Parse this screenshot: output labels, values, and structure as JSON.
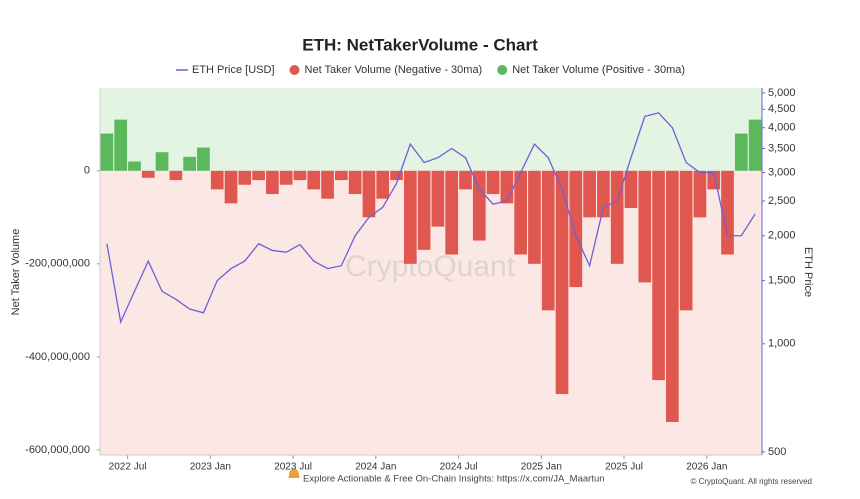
{
  "chart_data": {
    "type": "bar",
    "title": "ETH: NetTakerVolume - Chart",
    "y_label": "Net Taker Volume",
    "y2_label": "ETH Price",
    "watermark": "CryptoQuant",
    "footer": "Explore Actionable & Free On-Chain Insights: https://x.com/JA_Maartun",
    "copyright": "© CryptoQuant. All rights reserved",
    "x": [
      "2022-05",
      "2022-06",
      "2022-07",
      "2022-08",
      "2022-09",
      "2022-10",
      "2022-11",
      "2022-12",
      "2023-01",
      "2023-02",
      "2023-03",
      "2023-04",
      "2023-05",
      "2023-06",
      "2023-07",
      "2023-08",
      "2023-09",
      "2023-10",
      "2023-11",
      "2023-12",
      "2024-01",
      "2024-02",
      "2024-03",
      "2024-04",
      "2024-05",
      "2024-06",
      "2024-07",
      "2024-08",
      "2024-09",
      "2024-10",
      "2024-11",
      "2024-12",
      "2025-01",
      "2025-02",
      "2025-03",
      "2025-04",
      "2025-05",
      "2025-06",
      "2025-07",
      "2025-08",
      "2025-09",
      "2025-10",
      "2025-11",
      "2025-12",
      "2026-01",
      "2026-02",
      "2026-03",
      "2026-04"
    ],
    "xticks": [
      {
        "value": "2022-07",
        "label": "2022 Jul"
      },
      {
        "value": "2023-01",
        "label": "2023 Jan"
      },
      {
        "value": "2023-07",
        "label": "2023 Jul"
      },
      {
        "value": "2024-01",
        "label": "2024 Jan"
      },
      {
        "value": "2024-07",
        "label": "2024 Jul"
      },
      {
        "value": "2025-01",
        "label": "2025 Jan"
      },
      {
        "value": "2025-07",
        "label": "2025 Jul"
      },
      {
        "value": "2026-01",
        "label": "2026 Jan"
      }
    ],
    "ylim": [
      -611000000,
      178000000
    ],
    "yticks": [
      0,
      {
        "value": -200000000,
        "label": "-200,000,000"
      },
      {
        "value": -400000000,
        "label": "-400,000,000"
      },
      {
        "value": -600000000,
        "label": "-600,000,000"
      }
    ],
    "y2lim": [
      490,
      5160
    ],
    "y2log": true,
    "y2ticks": [
      500,
      {
        "value": 1000,
        "label": "1,000"
      },
      {
        "value": 1500,
        "label": "1,500"
      },
      {
        "value": 2000,
        "label": "2,000"
      },
      {
        "value": 2500,
        "label": "2,500"
      },
      {
        "value": 3000,
        "label": "3,000"
      },
      {
        "value": 3500,
        "label": "3,500"
      },
      {
        "value": 4000,
        "label": "4,000"
      },
      {
        "value": 4500,
        "label": "4,500"
      },
      {
        "value": 5000,
        "label": "5,000"
      }
    ],
    "background_positive": "#e3f4e3",
    "background_negative": "#fbe8e4",
    "series": [
      {
        "name": "ETH Price [USD]",
        "type": "line",
        "axis": "y2",
        "color": "#6f5fd8",
        "values": [
          1900,
          1150,
          1400,
          1700,
          1400,
          1330,
          1250,
          1220,
          1500,
          1620,
          1700,
          1900,
          1820,
          1800,
          1890,
          1700,
          1620,
          1650,
          2000,
          2250,
          2400,
          2800,
          3600,
          3200,
          3300,
          3500,
          3300,
          2700,
          2450,
          2500,
          3000,
          3600,
          3300,
          2700,
          2000,
          1650,
          2400,
          2500,
          3300,
          4300,
          4400,
          4000,
          3200,
          3000,
          3000,
          2000,
          2000,
          2300
        ]
      },
      {
        "name": "Net Taker Volume (Negative - 30ma)",
        "type": "bar",
        "color": "#e0574f",
        "values": [
          null,
          null,
          null,
          -15000000,
          null,
          -20000000,
          null,
          null,
          -40000000,
          -70000000,
          -30000000,
          -20000000,
          -50000000,
          -30000000,
          -20000000,
          -40000000,
          -60000000,
          -20000000,
          -50000000,
          -100000000,
          -60000000,
          -20000000,
          -200000000,
          -170000000,
          -120000000,
          -180000000,
          -40000000,
          -150000000,
          -50000000,
          -70000000,
          -180000000,
          -200000000,
          -300000000,
          -480000000,
          -250000000,
          -100000000,
          -100000000,
          -200000000,
          -80000000,
          -240000000,
          -450000000,
          -540000000,
          -300000000,
          -100000000,
          -40000000,
          -180000000,
          null,
          null
        ]
      },
      {
        "name": "Net Taker Volume (Positive - 30ma)",
        "type": "bar",
        "color": "#5cb85c",
        "values": [
          80000000,
          110000000,
          20000000,
          null,
          40000000,
          null,
          30000000,
          50000000,
          null,
          null,
          null,
          null,
          null,
          null,
          null,
          null,
          null,
          null,
          null,
          null,
          null,
          null,
          null,
          null,
          null,
          null,
          null,
          null,
          null,
          null,
          null,
          null,
          null,
          null,
          null,
          null,
          null,
          null,
          null,
          null,
          null,
          null,
          null,
          null,
          null,
          null,
          80000000,
          110000000
        ]
      }
    ]
  }
}
